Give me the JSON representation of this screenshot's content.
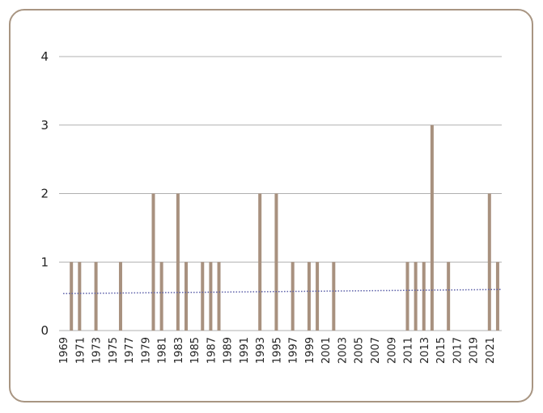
{
  "chart_data": {
    "type": "bar",
    "categories": [
      "1969",
      null,
      "1971",
      null,
      "1973",
      null,
      "1975",
      null,
      "1977",
      null,
      "1979",
      null,
      "1981",
      null,
      "1983",
      null,
      "1985",
      null,
      "1987",
      null,
      "1989",
      null,
      "1991",
      null,
      "1993",
      null,
      "1995",
      null,
      "1997",
      null,
      "1999",
      null,
      "2001",
      null,
      "2003",
      null,
      "2005",
      null,
      "2007",
      null,
      "2009",
      null,
      "2011",
      null,
      "2013",
      null,
      "2015",
      null,
      "2017",
      null,
      "2019",
      null,
      "2021",
      null
    ],
    "values": [
      0,
      1,
      1,
      0,
      1,
      0,
      0,
      1,
      0,
      0,
      0,
      2,
      1,
      0,
      2,
      1,
      0,
      1,
      1,
      1,
      0,
      0,
      0,
      0,
      2,
      0,
      2,
      0,
      1,
      0,
      1,
      1,
      0,
      1,
      0,
      0,
      0,
      0,
      0,
      0,
      0,
      0,
      1,
      1,
      1,
      3,
      0,
      1,
      0,
      0,
      0,
      0,
      2,
      1
    ],
    "color": "#a8917f",
    "trend": {
      "values": [
        0.54,
        0.6
      ],
      "color": "#5b5fa8"
    },
    "ylim": [
      0,
      4
    ],
    "yticks": [
      0,
      1,
      2,
      3,
      4
    ],
    "grid": true
  }
}
